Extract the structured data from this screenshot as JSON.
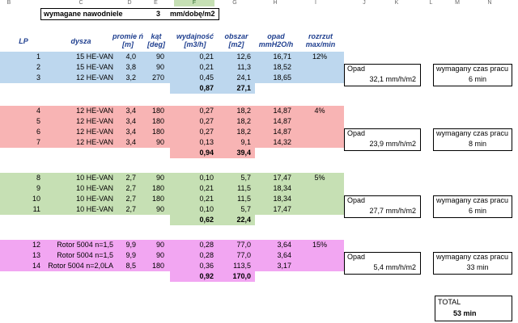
{
  "columns": [
    "B",
    "C",
    "D",
    "E",
    "F",
    "G",
    "H",
    "I",
    "J",
    "K",
    "L",
    "M",
    "N"
  ],
  "colors": {
    "blue": "#bdd7ee",
    "red": "#f8b4b4",
    "green": "#c6e0b4",
    "pink": "#f2a6f2",
    "yellow": "#ffff66",
    "header": "#1f3f8f"
  },
  "requirement": {
    "label": "wymagane nawodniele",
    "value": "3",
    "unit": "mm/dobę/m2"
  },
  "headers": {
    "lp": "LP",
    "dysza": "dysza",
    "promien": "promie ń [m]",
    "kat": "kąt [deg]",
    "wydajnosc": "wydajność [m3/h]",
    "obszar": "obszar [m2]",
    "opad": "opad mmH2O/h",
    "rozrzut": "rozrzut max/min"
  },
  "groups": [
    {
      "color": "blue",
      "rows": [
        {
          "lp": "1",
          "dysza": "15 HE-VAN",
          "promien": "4,0",
          "kat": "90",
          "wydajnosc": "0,21",
          "obszar": "12,6",
          "opad": "16,71"
        },
        {
          "lp": "2",
          "dysza": "15 HE-VAN",
          "promien": "3,8",
          "kat": "90",
          "wydajnosc": "0,21",
          "obszar": "11,3",
          "opad": "18,52"
        },
        {
          "lp": "3",
          "dysza": "12 HE-VAN",
          "promien": "3,2",
          "kat": "270",
          "wydajnosc": "0,45",
          "obszar": "24,1",
          "opad": "18,65"
        }
      ],
      "rozrzut": "12%",
      "sum_wydajnosc": "0,87",
      "sum_obszar": "27,1",
      "opad_label": "Opad",
      "opad_value": "32,1 mm/h/m2",
      "czas_label": "wymagany czas pracu",
      "czas_value": "6 min"
    },
    {
      "color": "red",
      "rows": [
        {
          "lp": "4",
          "dysza": "12 HE-VAN",
          "promien": "3,4",
          "kat": "180",
          "wydajnosc": "0,27",
          "obszar": "18,2",
          "opad": "14,87"
        },
        {
          "lp": "5",
          "dysza": "12 HE-VAN",
          "promien": "3,4",
          "kat": "180",
          "wydajnosc": "0,27",
          "obszar": "18,2",
          "opad": "14,87"
        },
        {
          "lp": "6",
          "dysza": "12 HE-VAN",
          "promien": "3,4",
          "kat": "180",
          "wydajnosc": "0,27",
          "obszar": "18,2",
          "opad": "14,87"
        },
        {
          "lp": "7",
          "dysza": "12 HE-VAN",
          "promien": "3,4",
          "kat": "90",
          "wydajnosc": "0,13",
          "obszar": "9,1",
          "opad": "14,32"
        }
      ],
      "rozrzut": "4%",
      "sum_wydajnosc": "0,94",
      "sum_obszar": "39,4",
      "opad_label": "Opad",
      "opad_value": "23,9 mm/h/m2",
      "czas_label": "wymagany czas pracu",
      "czas_value": "8 min"
    },
    {
      "color": "green",
      "rows": [
        {
          "lp": "8",
          "dysza": "10 HE-VAN",
          "promien": "2,7",
          "kat": "90",
          "wydajnosc": "0,10",
          "obszar": "5,7",
          "opad": "17,47"
        },
        {
          "lp": "9",
          "dysza": "10 HE-VAN",
          "promien": "2,7",
          "kat": "180",
          "wydajnosc": "0,21",
          "obszar": "11,5",
          "opad": "18,34"
        },
        {
          "lp": "10",
          "dysza": "10 HE-VAN",
          "promien": "2,7",
          "kat": "180",
          "wydajnosc": "0,21",
          "obszar": "11,5",
          "opad": "18,34"
        },
        {
          "lp": "11",
          "dysza": "10 HE-VAN",
          "promien": "2,7",
          "kat": "90",
          "wydajnosc": "0,10",
          "obszar": "5,7",
          "opad": "17,47"
        }
      ],
      "rozrzut": "5%",
      "sum_wydajnosc": "0,62",
      "sum_obszar": "22,4",
      "opad_label": "Opad",
      "opad_value": "27,7 mm/h/m2",
      "czas_label": "wymagany czas pracu",
      "czas_value": "6 min"
    },
    {
      "color": "pink",
      "rows": [
        {
          "lp": "12",
          "dysza": "Rotor 5004 n=1,5",
          "promien": "9,9",
          "kat": "90",
          "wydajnosc": "0,28",
          "obszar": "77,0",
          "opad": "3,64"
        },
        {
          "lp": "13",
          "dysza": "Rotor 5004 n=1,5",
          "promien": "9,9",
          "kat": "90",
          "wydajnosc": "0,28",
          "obszar": "77,0",
          "opad": "3,64"
        },
        {
          "lp": "14",
          "dysza": "Rotor 5004 n=2,0LA",
          "promien": "8,5",
          "kat": "180",
          "wydajnosc": "0,36",
          "obszar": "113,5",
          "opad": "3,17"
        }
      ],
      "rozrzut": "15%",
      "sum_wydajnosc": "0,92",
      "sum_obszar": "170,0",
      "opad_label": "Opad",
      "opad_value": "5,4 mm/h/m2",
      "czas_label": "wymagany czas pracu",
      "czas_value": "33 min"
    }
  ],
  "total": {
    "label": "TOTAL",
    "value": "53 min"
  }
}
